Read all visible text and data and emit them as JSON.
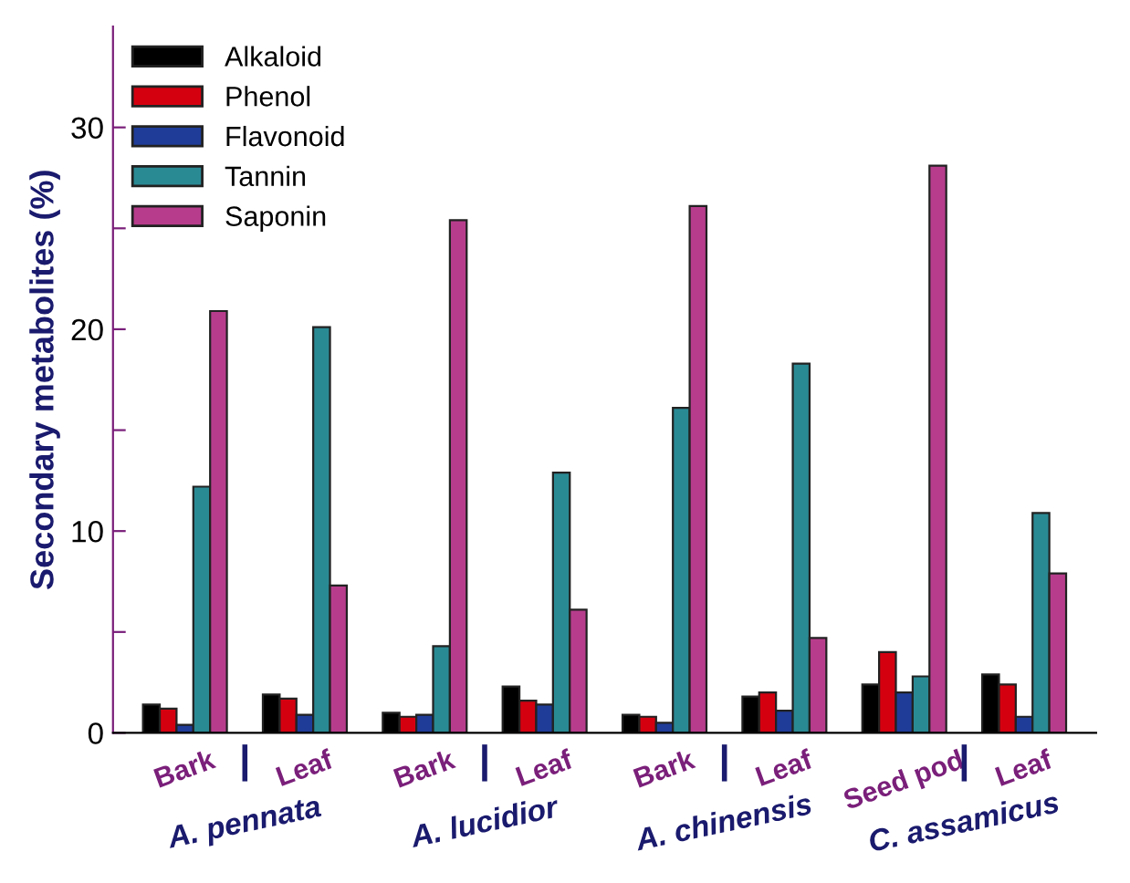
{
  "chart_data": {
    "type": "bar",
    "ylabel": "Secondary metabolites (%)",
    "categories": [
      "Bark",
      "Leaf",
      "Bark",
      "Leaf",
      "Bark",
      "Leaf",
      "Seed pod",
      "Leaf"
    ],
    "series": [
      {
        "name": "Alkaloid",
        "color": "#000000",
        "values": [
          1.4,
          1.9,
          1.0,
          2.3,
          0.9,
          1.8,
          2.4,
          2.9
        ]
      },
      {
        "name": "Phenol",
        "color": "#d40010",
        "values": [
          1.2,
          1.7,
          0.8,
          1.6,
          0.8,
          2.0,
          4.0,
          2.4
        ]
      },
      {
        "name": "Flavonoid",
        "color": "#1f3c99",
        "values": [
          0.4,
          0.9,
          0.9,
          1.4,
          0.5,
          1.1,
          2.0,
          0.8
        ]
      },
      {
        "name": "Tannin",
        "color": "#2a8a94",
        "values": [
          12.2,
          20.1,
          4.3,
          12.9,
          16.1,
          18.3,
          2.8,
          10.9
        ]
      },
      {
        "name": "Saponin",
        "color": "#b73d8c",
        "values": [
          20.9,
          7.3,
          25.4,
          6.1,
          26.1,
          4.7,
          28.1,
          7.9
        ]
      }
    ],
    "annotations": [
      "A. pennata",
      "A. lucidior",
      "A. chinensis",
      "C. assamicus"
    ],
    "ylim": [
      0,
      35
    ],
    "yticks": [
      0,
      {
        "value": 5,
        "label": null
      },
      10,
      {
        "value": 15,
        "label": null
      },
      20,
      {
        "value": 25,
        "label": null
      },
      30
    ],
    "legend": "top left",
    "grid": false
  }
}
